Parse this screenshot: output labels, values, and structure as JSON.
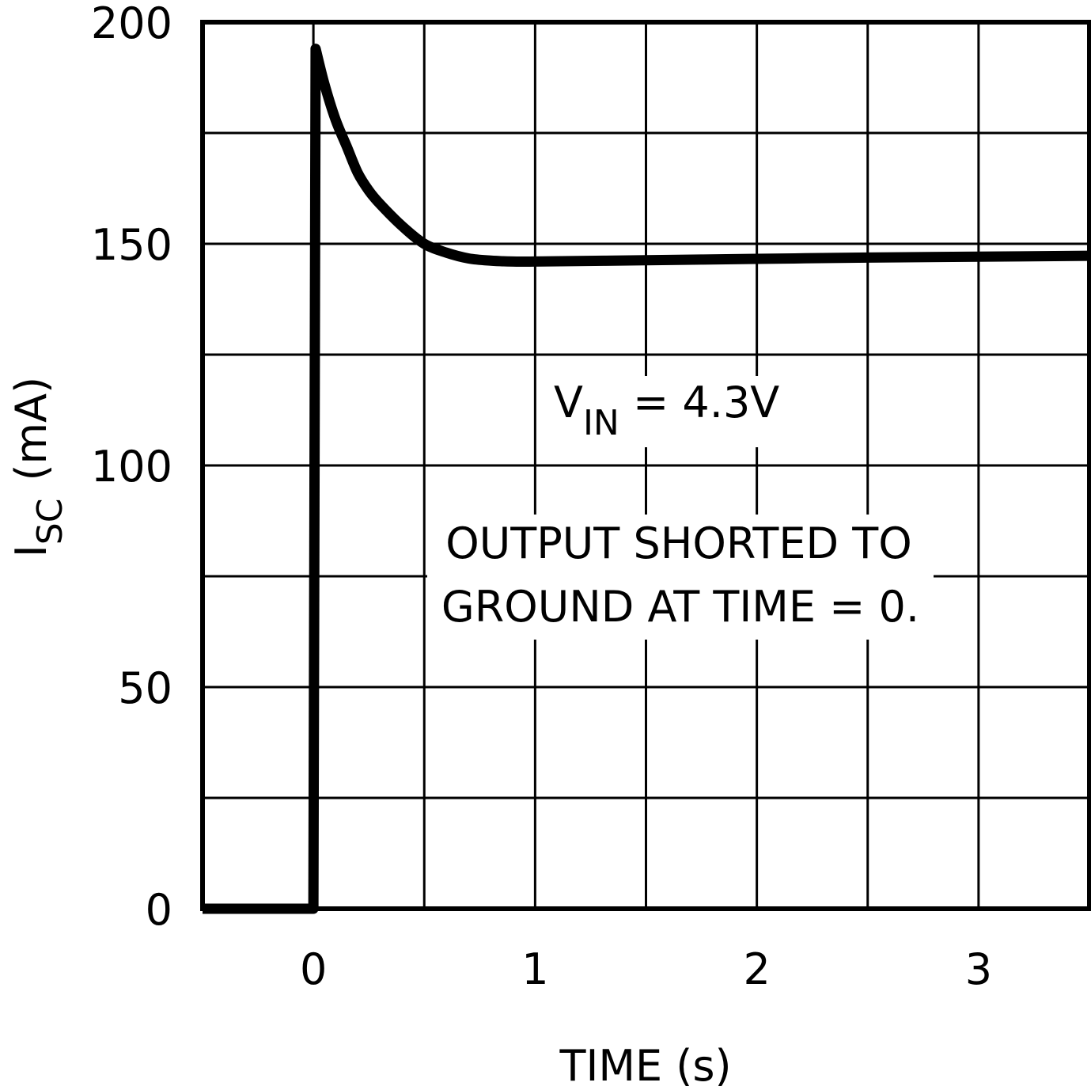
{
  "chart_data": {
    "type": "line",
    "xlabel": "TIME (s)",
    "ylabel": {
      "main": "I",
      "sub": "SC",
      "unit": "(mA)"
    },
    "xlim": [
      -0.5,
      3.5
    ],
    "ylim": [
      0,
      200
    ],
    "x_ticks": [
      0,
      1,
      2,
      3
    ],
    "x_tick_labels": [
      "0",
      "1",
      "2",
      "3"
    ],
    "y_ticks": [
      0,
      50,
      100,
      150,
      200
    ],
    "y_tick_labels": [
      "0",
      "50",
      "100",
      "150",
      "200"
    ],
    "x_grid_step": 0.5,
    "y_grid_step": 25,
    "grid": true,
    "series": [
      {
        "x": [
          -0.5,
          0,
          0.01,
          0.05,
          0.1,
          0.15,
          0.2,
          0.25,
          0.3,
          0.4,
          0.5,
          0.6,
          0.7,
          0.8,
          0.9,
          1.0,
          1.5,
          2.0,
          2.5,
          3.0,
          3.5
        ],
        "y": [
          0,
          0,
          194,
          186,
          178,
          172,
          166,
          162,
          159,
          154,
          150,
          148,
          146.7,
          146.2,
          146,
          146,
          146.3,
          146.6,
          146.9,
          147.1,
          147.3
        ]
      }
    ],
    "annotations": [
      {
        "main": "V",
        "sub": "IN",
        "rest": " = 4.3V"
      },
      {
        "line1": "OUTPUT SHORTED TO",
        "line2": "GROUND AT TIME = 0."
      }
    ]
  }
}
